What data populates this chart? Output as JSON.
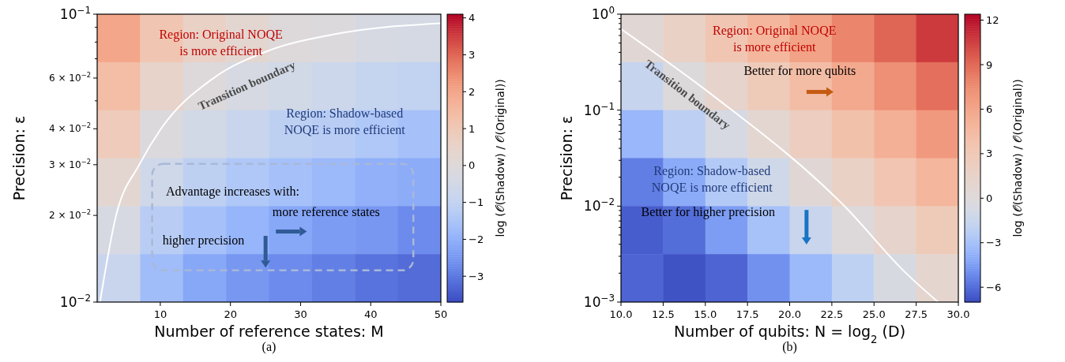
{
  "chart_data": [
    {
      "type": "heatmap",
      "xlabel": "Number of reference states: M",
      "ylabel": "Precision: ε",
      "clabel": "log (𝒪(Shadow) / 𝒪(Original))",
      "log": "y",
      "cells": [
        [
          2.0,
          1.1,
          0.6,
          0.3,
          0.0,
          -0.1,
          -0.3,
          -0.4
        ],
        [
          1.4,
          0.5,
          0.0,
          -0.3,
          -0.5,
          -0.7,
          -0.9,
          -1.0
        ],
        [
          0.9,
          -0.1,
          -0.5,
          -0.8,
          -1.1,
          -1.2,
          -1.4,
          -1.6
        ],
        [
          0.3,
          -0.6,
          -1.1,
          -1.4,
          -1.6,
          -1.8,
          -2.0,
          -2.1
        ],
        [
          -0.3,
          -1.2,
          -1.6,
          -1.9,
          -2.2,
          -2.4,
          -2.5,
          -2.7
        ],
        [
          -0.8,
          -1.7,
          -2.2,
          -2.5,
          -2.7,
          -2.9,
          -3.1,
          -3.2
        ]
      ],
      "clim": [
        -3.7,
        4.1
      ],
      "cticks": [
        {
          "value": -3,
          "label": "−3"
        },
        {
          "value": -2,
          "label": "−2"
        },
        {
          "value": -1,
          "label": "−1"
        },
        0,
        1,
        2,
        3,
        4
      ],
      "xlim": [
        1,
        50
      ],
      "xticks": [
        10,
        20,
        30,
        40,
        50
      ],
      "ylim": [
        0.01,
        0.1
      ],
      "yticks": [
        {
          "value": 0.01,
          "label": "10$^{−2}$"
        },
        {
          "value": 0.02,
          "label": "2 × 10$^{−2}$"
        },
        {
          "value": 0.03,
          "label": "3 × 10$^{−2}$"
        },
        {
          "value": 0.04,
          "label": "4 × 10$^{−2}$"
        },
        {
          "value": 0.05,
          "label": null
        },
        {
          "value": 0.06,
          "label": "6 × 10$^{−2}$"
        },
        {
          "value": 0.07,
          "label": null
        },
        {
          "value": 0.08,
          "label": null
        },
        {
          "value": 0.09,
          "label": null
        },
        {
          "value": 0.1,
          "label": "10$^{−1}$"
        }
      ],
      "series": [
        {
          "type": "line",
          "name": "Transition boundary",
          "color": "#ffffff",
          "x": [
            1.4,
            3.7,
            7,
            10.1,
            17.6,
            25,
            34.6,
            50
          ],
          "values": [
            0.01,
            0.02,
            0.03,
            0.04,
            0.06,
            0.074,
            0.085,
            0.093
          ]
        }
      ],
      "annotations": [
        "Region: Original NOQE\nis more efficient",
        "Region: Shadow-based\nNOQE is more efficient",
        "Advantage increases with:",
        "more reference states",
        "higher precision",
        "(a)"
      ]
    },
    {
      "type": "heatmap",
      "xlabel": "Number of qubits: N = log$_{2}$ (D)",
      "ylabel": "Precision: ε",
      "clabel": "log (𝒪(Shadow) / 𝒪(Original))",
      "log": "y",
      "cells": [
        [
          0.4,
          1.8,
          3.3,
          4.8,
          6.3,
          7.8,
          9.2,
          10.7
        ],
        [
          -1.6,
          -0.1,
          1.4,
          2.8,
          4.3,
          5.8,
          7.3,
          8.8
        ],
        [
          -3.5,
          -2.1,
          -0.6,
          0.9,
          2.4,
          3.9,
          5.3,
          6.8
        ],
        [
          -5.5,
          -4.0,
          -2.5,
          -1.1,
          0.4,
          1.9,
          3.4,
          4.9
        ],
        [
          -6.5,
          -6.0,
          -4.5,
          -3.0,
          -1.5,
          0.0,
          1.4,
          2.9
        ],
        [
          -6.3,
          -6.8,
          -6.3,
          -4.9,
          -3.4,
          -2.0,
          -0.5,
          1.0
        ]
      ],
      "clim": [
        -7,
        12.4
      ],
      "cticks": [
        {
          "value": -6,
          "label": "−6"
        },
        {
          "value": -3,
          "label": "−3"
        },
        0,
        3,
        6,
        9,
        12
      ],
      "xlim": [
        10,
        30
      ],
      "xticks": [
        {
          "value": 10,
          "label": "10.0"
        },
        12.5,
        {
          "value": 15,
          "label": "15.0"
        },
        17.5,
        {
          "value": 20,
          "label": "20.0"
        },
        22.5,
        {
          "value": 25,
          "label": "25.0"
        },
        27.5,
        {
          "value": 30,
          "label": "30.0"
        }
      ],
      "ylim": [
        0.001,
        1
      ],
      "yticks": [
        {
          "value": 0.001,
          "label": "10$^{−3}$"
        },
        {
          "value": 0.002,
          "label": null
        },
        {
          "value": 0.003,
          "label": null
        },
        {
          "value": 0.004,
          "label": null
        },
        {
          "value": 0.005,
          "label": null
        },
        {
          "value": 0.006,
          "label": null
        },
        {
          "value": 0.007,
          "label": null
        },
        {
          "value": 0.008,
          "label": null
        },
        {
          "value": 0.009,
          "label": null
        },
        {
          "value": 0.01,
          "label": "10$^{−2}$"
        },
        {
          "value": 0.02,
          "label": null
        },
        {
          "value": 0.03,
          "label": null
        },
        {
          "value": 0.04,
          "label": null
        },
        {
          "value": 0.05,
          "label": null
        },
        {
          "value": 0.06,
          "label": null
        },
        {
          "value": 0.07,
          "label": null
        },
        {
          "value": 0.08,
          "label": null
        },
        {
          "value": 0.09,
          "label": null
        },
        {
          "value": 0.1,
          "label": "10$^{−1}$"
        },
        {
          "value": 0.2,
          "label": null
        },
        {
          "value": 0.3,
          "label": null
        },
        {
          "value": 0.4,
          "label": null
        },
        {
          "value": 0.5,
          "label": null
        },
        {
          "value": 0.6,
          "label": null
        },
        {
          "value": 0.7,
          "label": null
        },
        {
          "value": 0.8,
          "label": null
        },
        {
          "value": 0.9,
          "label": null
        },
        {
          "value": 1,
          "label": "10$^{0}$"
        }
      ],
      "series": [
        {
          "type": "line",
          "name": "Transition boundary",
          "color": "#ffffff",
          "x": [
            10,
            15.5,
            23.2,
            26.9,
            28.8
          ],
          "values": [
            0.7,
            0.14,
            0.0102,
            0.002,
            0.001
          ]
        }
      ],
      "annotations": [
        "Region: Original NOQE\nis more efficient",
        "Better for more qubits",
        "Region: Shadow-based\nNOQE is more efficient",
        "Better for higher precision",
        "(b)"
      ]
    }
  ]
}
